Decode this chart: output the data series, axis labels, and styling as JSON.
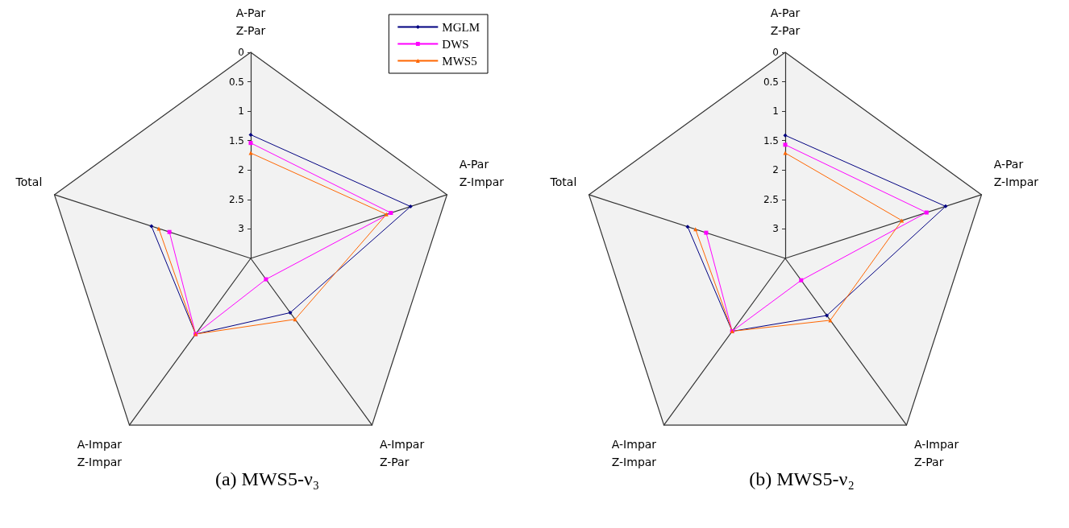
{
  "chart_data": [
    {
      "type": "radar",
      "title": "(a) MWS5-ν₃",
      "categories": [
        "A-Par\nZ-Par",
        "A-Par\nZ-Impar",
        "A-Impar\nZ-Par",
        "A-Impar\nZ-Impar",
        "Total"
      ],
      "ylim": [
        3.5,
        0
      ],
      "yticks": [
        0,
        0.5,
        1,
        1.5,
        2,
        2.5,
        3
      ],
      "grid": false,
      "legend": "top right",
      "line_style": "solid",
      "series": [
        {
          "name": "MGLM",
          "color": "#000080",
          "marker": "diamond",
          "values": [
            1.4,
            0.65,
            2.36,
            1.91,
            1.73
          ]
        },
        {
          "name": "DWS",
          "color": "#ff00ff",
          "marker": "square",
          "values": [
            1.54,
            1.0,
            3.06,
            1.91,
            2.05
          ]
        },
        {
          "name": "MWS5",
          "color": "#ff6600",
          "marker": "triangle",
          "values": [
            1.71,
            1.08,
            2.22,
            1.91,
            1.86
          ]
        }
      ]
    },
    {
      "type": "radar",
      "title": "(b) MWS5-ν₂",
      "categories": [
        "A-Par\nZ-Par",
        "A-Par\nZ-Impar",
        "A-Impar\nZ-Par",
        "A-Impar\nZ-Impar",
        "Total"
      ],
      "ylim": [
        3.5,
        0
      ],
      "yticks": [
        0,
        0.5,
        1,
        1.5,
        2,
        2.5,
        3
      ],
      "grid": false,
      "line_style": "solid",
      "series": [
        {
          "color": "#000080",
          "marker": "diamond",
          "values": [
            1.41,
            0.64,
            2.3,
            1.97,
            1.76
          ]
        },
        {
          "color": "#ff00ff",
          "marker": "square",
          "values": [
            1.57,
            0.98,
            3.04,
            1.97,
            2.09
          ]
        },
        {
          "color": "#ff6600",
          "marker": "triangle",
          "values": [
            1.71,
            1.42,
            2.2,
            1.97,
            1.9
          ]
        }
      ]
    }
  ]
}
